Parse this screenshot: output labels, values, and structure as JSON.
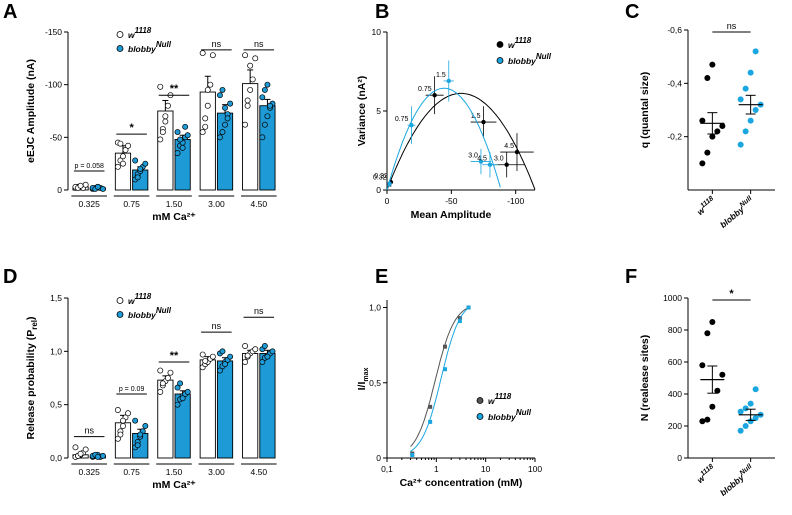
{
  "colors": {
    "black": "#000000",
    "blue": "#1AA7E0",
    "bar_fill": "#1E9AD6",
    "axis": "#000000"
  },
  "panel_letters": [
    "A",
    "B",
    "C",
    "D",
    "E",
    "F"
  ],
  "chart_data": [
    {
      "id": "A",
      "type": "bar",
      "categories": [
        "0.325",
        "0.75",
        "1.50",
        "3.00",
        "4.50"
      ],
      "xlabel": "mM Ca²⁺",
      "ylabel": "eEJC Amplitude (nA)",
      "yticks": [
        "0",
        "-50",
        "-100",
        "-150"
      ],
      "ylim": [
        0,
        150
      ],
      "legend": [
        {
          "name": "w",
          "sup": "1118"
        },
        {
          "name": "blobby",
          "sup": "Null"
        }
      ],
      "series": [
        {
          "name": "w1118",
          "values": [
            3,
            35,
            75,
            93,
            101
          ],
          "errors": [
            1,
            7,
            10,
            15,
            13
          ],
          "points": [
            [
              2,
              3,
              4,
              2,
              5,
              3,
              2,
              4
            ],
            [
              22,
              28,
              32,
              38,
              42,
              45,
              44,
              25
            ],
            [
              48,
              58,
              65,
              80,
              90,
              98,
              55,
              70
            ],
            [
              55,
              68,
              80,
              100,
              128,
              130,
              60,
              95
            ],
            [
              62,
              80,
              95,
              105,
              125,
              128,
              85,
              118
            ]
          ]
        },
        {
          "name": "blobbyNull",
          "values": [
            2,
            19,
            48,
            73,
            80
          ],
          "errors": [
            1,
            3,
            4,
            8,
            6
          ],
          "points": [
            [
              1,
              2,
              3,
              2,
              1,
              2,
              1,
              3
            ],
            [
              10,
              15,
              18,
              22,
              25,
              28,
              12,
              20
            ],
            [
              35,
              42,
              45,
              50,
              52,
              55,
              48,
              40,
              60
            ],
            [
              50,
              55,
              62,
              72,
              82,
              90,
              95,
              78,
              68
            ],
            [
              50,
              62,
              70,
              78,
              82,
              88,
              95,
              100,
              80
            ]
          ]
        }
      ],
      "annotations": [
        {
          "text": "p = 0.058",
          "category": "0.325",
          "y": 18
        },
        {
          "text": "*",
          "category": "0.75",
          "y": 53
        },
        {
          "text": "**",
          "category": "1.50",
          "y": 90
        },
        {
          "text": "ns",
          "category": "3.00",
          "y": 133
        },
        {
          "text": "ns",
          "category": "4.50",
          "y": 133
        }
      ]
    },
    {
      "id": "B",
      "type": "scatter",
      "xlabel": "Mean Amplitude",
      "ylabel": "Variance (nA²)",
      "xticks": [
        "0",
        "-50",
        "-100"
      ],
      "yticks": [
        "0",
        "5",
        "10"
      ],
      "xlim": [
        0,
        -115
      ],
      "ylim": [
        0,
        10
      ],
      "legend": [
        {
          "name": "w",
          "sup": "1118"
        },
        {
          "name": "blobby",
          "sup": "Null"
        }
      ],
      "series": [
        {
          "name": "w1118",
          "points": [
            {
              "x": -3,
              "y": 0.5,
              "xe": 1,
              "ye": 0.3,
              "label": "0.32"
            },
            {
              "x": -37,
              "y": 6.0,
              "xe": 7,
              "ye": 1.2,
              "label": "0.75"
            },
            {
              "x": -75,
              "y": 4.3,
              "xe": 10,
              "ye": 1.0,
              "label": "1.5"
            },
            {
              "x": -93,
              "y": 1.6,
              "xe": 14,
              "ye": 0.8,
              "label": "3.0"
            },
            {
              "x": -101,
              "y": 2.4,
              "xe": 13,
              "ye": 1.2,
              "label": "4.5"
            }
          ],
          "fit": {
            "a": -0.001846,
            "b": -0.2125
          }
        },
        {
          "name": "blobbyNull",
          "points": [
            {
              "x": -2,
              "y": 0.4,
              "xe": 1,
              "ye": 0.2,
              "label": "0.32"
            },
            {
              "x": -19,
              "y": 4.1,
              "xe": 3,
              "ye": 1.2,
              "label": "0.75"
            },
            {
              "x": -48,
              "y": 6.9,
              "xe": 4,
              "ye": 1.3,
              "label": "1.5"
            },
            {
              "x": -73,
              "y": 1.8,
              "xe": 8,
              "ye": 0.8,
              "label": "3.0"
            },
            {
              "x": -80,
              "y": 1.6,
              "xe": 6,
              "ye": 0.8,
              "label": "4.5"
            }
          ],
          "fit": {
            "a": -0.003281,
            "b": -0.2907
          }
        }
      ]
    },
    {
      "id": "C",
      "type": "scatter",
      "ylabel": "q (quantal size)",
      "categories": [
        "w1118",
        "blobbyNull"
      ],
      "yticks": [
        "-0,2",
        "-0,4",
        "-0,6"
      ],
      "ylim": [
        0,
        -0.6
      ],
      "series": [
        {
          "name": "w1118",
          "mean": -0.25,
          "sem": 0.04,
          "values": [
            -0.1,
            -0.14,
            -0.2,
            -0.22,
            -0.24,
            -0.26,
            -0.42,
            -0.47
          ]
        },
        {
          "name": "blobbyNull",
          "mean": -0.32,
          "sem": 0.035,
          "values": [
            -0.17,
            -0.22,
            -0.26,
            -0.3,
            -0.32,
            -0.34,
            -0.38,
            -0.44,
            -0.52
          ]
        }
      ],
      "annotations": [
        {
          "text": "ns"
        }
      ]
    },
    {
      "id": "D",
      "type": "bar",
      "categories": [
        "0.325",
        "0.75",
        "1.50",
        "3.00",
        "4.50"
      ],
      "xlabel": "mM Ca²⁺",
      "ylabel": "Release probability (P",
      "ylabel_sub": "rel",
      "ylabel_end": ")",
      "yticks": [
        "0,0",
        "0,5",
        "1,0",
        "1,5"
      ],
      "ylim": [
        0,
        1.5
      ],
      "legend": [
        {
          "name": "w",
          "sup": "1118"
        },
        {
          "name": "blobby",
          "sup": "Null"
        }
      ],
      "series": [
        {
          "name": "w1118",
          "values": [
            0.03,
            0.33,
            0.73,
            0.92,
            0.98
          ],
          "errors": [
            0.01,
            0.07,
            0.04,
            0.03,
            0.03
          ],
          "points": [
            [
              0.01,
              0.02,
              0.03,
              0.05,
              0.08,
              0.1,
              0.02,
              0.04
            ],
            [
              0.18,
              0.25,
              0.3,
              0.38,
              0.42,
              0.45,
              0.22,
              0.35
            ],
            [
              0.62,
              0.68,
              0.72,
              0.75,
              0.8,
              0.82,
              0.7
            ],
            [
              0.85,
              0.88,
              0.9,
              0.93,
              0.95,
              0.97,
              0.91
            ],
            [
              0.9,
              0.95,
              0.98,
              1.0,
              1.02,
              1.05,
              0.96
            ]
          ]
        },
        {
          "name": "blobbyNull",
          "values": [
            0.02,
            0.23,
            0.6,
            0.91,
            0.98
          ],
          "errors": [
            0.01,
            0.04,
            0.03,
            0.03,
            0.03
          ],
          "points": [
            [
              0.01,
              0.02,
              0.03,
              0.01,
              0.02,
              0.02,
              0.03,
              0.01
            ],
            [
              0.1,
              0.15,
              0.2,
              0.25,
              0.3,
              0.35,
              0.12,
              0.22
            ],
            [
              0.5,
              0.55,
              0.58,
              0.6,
              0.62,
              0.66,
              0.7,
              0.56
            ],
            [
              0.82,
              0.86,
              0.9,
              0.92,
              0.95,
              0.98,
              1.0,
              0.88
            ],
            [
              0.9,
              0.94,
              0.96,
              0.98,
              1.0,
              1.02,
              1.05,
              0.95
            ]
          ]
        }
      ],
      "annotations": [
        {
          "text": "ns",
          "category": "0.325",
          "y": 0.2
        },
        {
          "text": "p = 0.09",
          "category": "0.75",
          "y": 0.6
        },
        {
          "text": "**",
          "category": "1.50",
          "y": 0.9
        },
        {
          "text": "ns",
          "category": "3.00",
          "y": 1.18
        },
        {
          "text": "ns",
          "category": "4.50",
          "y": 1.32
        }
      ]
    },
    {
      "id": "E",
      "type": "line",
      "xlabel": "Ca²⁺ concentration (mM)",
      "ylabel": "I/I",
      "ylabel_sub": "max",
      "xscale": "log",
      "xticks": [
        "0,1",
        "1",
        "10",
        "100"
      ],
      "xlim": [
        0.1,
        100
      ],
      "yticks": [
        "0",
        "0,5",
        "1,0"
      ],
      "ylim": [
        0,
        1.05
      ],
      "legend": [
        {
          "name": "w",
          "sup": "1118"
        },
        {
          "name": "blobby",
          "sup": "Null"
        }
      ],
      "series": [
        {
          "name": "w1118",
          "x": [
            0.325,
            0.75,
            1.5,
            3.0,
            4.5
          ],
          "y": [
            0.03,
            0.34,
            0.74,
            0.93,
            1.0
          ],
          "ec50": 0.95,
          "hill": 2.2
        },
        {
          "name": "blobbyNull",
          "x": [
            0.325,
            0.75,
            1.5,
            3.0,
            4.5
          ],
          "y": [
            0.02,
            0.24,
            0.59,
            0.91,
            1.0
          ],
          "ec50": 1.25,
          "hill": 2.2
        }
      ]
    },
    {
      "id": "F",
      "type": "scatter",
      "ylabel": "N (realease sites)",
      "categories": [
        "w1118",
        "blobbyNull"
      ],
      "yticks": [
        "0",
        "200",
        "400",
        "600",
        "800",
        "1000"
      ],
      "ylim": [
        0,
        1000
      ],
      "series": [
        {
          "name": "w1118",
          "mean": 490,
          "sem": 85,
          "values": [
            230,
            240,
            320,
            420,
            520,
            580,
            780,
            850
          ]
        },
        {
          "name": "blobbyNull",
          "mean": 270,
          "sem": 35,
          "values": [
            170,
            200,
            230,
            250,
            270,
            290,
            310,
            340,
            430
          ]
        }
      ],
      "annotations": [
        {
          "text": "*"
        }
      ]
    }
  ]
}
